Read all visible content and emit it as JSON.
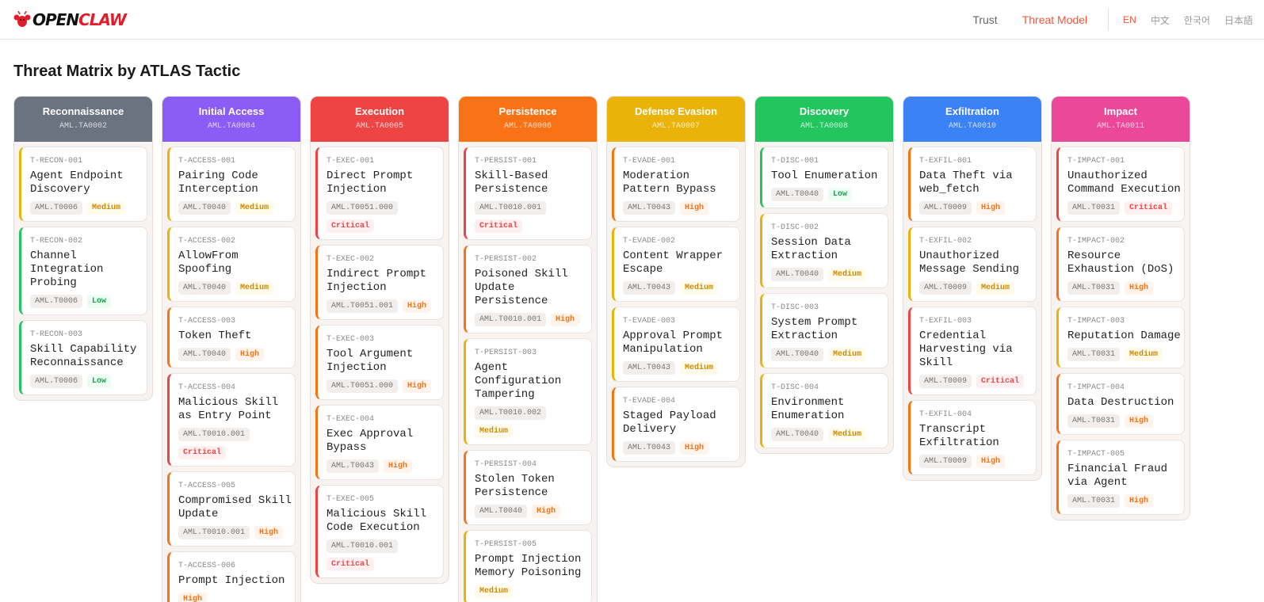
{
  "header": {
    "logo": {
      "part1": "OPEN",
      "part2": "CLAW"
    },
    "nav": [
      {
        "label": "Trust",
        "active": false
      },
      {
        "label": "Threat Model",
        "active": true
      }
    ],
    "languages": [
      {
        "label": "EN",
        "active": true
      },
      {
        "label": "中文",
        "active": false
      },
      {
        "label": "한국어",
        "active": false
      },
      {
        "label": "日本語",
        "active": false
      }
    ]
  },
  "page_title": "Threat Matrix by ATLAS Tactic",
  "severity_colors": {
    "Low": {
      "fg": "#16a34a",
      "bg": "#ecfdf3",
      "border": "#22c55e"
    },
    "Medium": {
      "fg": "#ca8a04",
      "bg": "#fefbea",
      "border": "#eab308"
    },
    "High": {
      "fg": "#f97316",
      "bg": "#fff4ec",
      "border": "#f97316"
    },
    "Critical": {
      "fg": "#ef4444",
      "bg": "#fef0f0",
      "border": "#ef4444"
    }
  },
  "tactics": [
    {
      "name": "Reconnaissance",
      "id": "AML.TA0002",
      "color": "#6b7280",
      "threats": [
        {
          "id": "T-RECON-001",
          "title": "Agent Endpoint Discovery",
          "technique": "AML.T0006",
          "severity": "Medium"
        },
        {
          "id": "T-RECON-002",
          "title": "Channel Integration Probing",
          "technique": "AML.T0006",
          "severity": "Low"
        },
        {
          "id": "T-RECON-003",
          "title": "Skill Capability Reconnaissance",
          "technique": "AML.T0006",
          "severity": "Low"
        }
      ]
    },
    {
      "name": "Initial Access",
      "id": "AML.TA0004",
      "color": "#8b5cf6",
      "threats": [
        {
          "id": "T-ACCESS-001",
          "title": "Pairing Code Interception",
          "technique": "AML.T0040",
          "severity": "Medium"
        },
        {
          "id": "T-ACCESS-002",
          "title": "AllowFrom Spoofing",
          "technique": "AML.T0040",
          "severity": "Medium"
        },
        {
          "id": "T-ACCESS-003",
          "title": "Token Theft",
          "technique": "AML.T0040",
          "severity": "High"
        },
        {
          "id": "T-ACCESS-004",
          "title": "Malicious Skill as Entry Point",
          "technique": "AML.T0010.001",
          "severity": "Critical"
        },
        {
          "id": "T-ACCESS-005",
          "title": "Compromised Skill Update",
          "technique": "AML.T0010.001",
          "severity": "High"
        },
        {
          "id": "T-ACCESS-006",
          "title": "Prompt Injection",
          "technique": "",
          "severity": "High"
        }
      ]
    },
    {
      "name": "Execution",
      "id": "AML.TA0005",
      "color": "#ef4444",
      "threats": [
        {
          "id": "T-EXEC-001",
          "title": "Direct Prompt Injection",
          "technique": "AML.T0051.000",
          "severity": "Critical"
        },
        {
          "id": "T-EXEC-002",
          "title": "Indirect Prompt Injection",
          "technique": "AML.T0051.001",
          "severity": "High"
        },
        {
          "id": "T-EXEC-003",
          "title": "Tool Argument Injection",
          "technique": "AML.T0051.000",
          "severity": "High"
        },
        {
          "id": "T-EXEC-004",
          "title": "Exec Approval Bypass",
          "technique": "AML.T0043",
          "severity": "High"
        },
        {
          "id": "T-EXEC-005",
          "title": "Malicious Skill Code Execution",
          "technique": "AML.T0010.001",
          "severity": "Critical"
        }
      ]
    },
    {
      "name": "Persistence",
      "id": "AML.TA0006",
      "color": "#f97316",
      "threats": [
        {
          "id": "T-PERSIST-001",
          "title": "Skill-Based Persistence",
          "technique": "AML.T0010.001",
          "severity": "Critical"
        },
        {
          "id": "T-PERSIST-002",
          "title": "Poisoned Skill Update Persistence",
          "technique": "AML.T0010.001",
          "severity": "High"
        },
        {
          "id": "T-PERSIST-003",
          "title": "Agent Configuration Tampering",
          "technique": "AML.T0010.002",
          "severity": "Medium"
        },
        {
          "id": "T-PERSIST-004",
          "title": "Stolen Token Persistence",
          "technique": "AML.T0040",
          "severity": "High"
        },
        {
          "id": "T-PERSIST-005",
          "title": "Prompt Injection Memory Poisoning",
          "technique": "",
          "severity": "Medium"
        }
      ]
    },
    {
      "name": "Defense Evasion",
      "id": "AML.TA0007",
      "color": "#eab308",
      "threats": [
        {
          "id": "T-EVADE-001",
          "title": "Moderation Pattern Bypass",
          "technique": "AML.T0043",
          "severity": "High"
        },
        {
          "id": "T-EVADE-002",
          "title": "Content Wrapper Escape",
          "technique": "AML.T0043",
          "severity": "Medium"
        },
        {
          "id": "T-EVADE-003",
          "title": "Approval Prompt Manipulation",
          "technique": "AML.T0043",
          "severity": "Medium"
        },
        {
          "id": "T-EVADE-004",
          "title": "Staged Payload Delivery",
          "technique": "AML.T0043",
          "severity": "High"
        }
      ]
    },
    {
      "name": "Discovery",
      "id": "AML.TA0008",
      "color": "#22c55e",
      "threats": [
        {
          "id": "T-DISC-001",
          "title": "Tool Enumeration",
          "technique": "AML.T0040",
          "severity": "Low"
        },
        {
          "id": "T-DISC-002",
          "title": "Session Data Extraction",
          "technique": "AML.T0040",
          "severity": "Medium"
        },
        {
          "id": "T-DISC-003",
          "title": "System Prompt Extraction",
          "technique": "AML.T0040",
          "severity": "Medium"
        },
        {
          "id": "T-DISC-004",
          "title": "Environment Enumeration",
          "technique": "AML.T0040",
          "severity": "Medium"
        }
      ]
    },
    {
      "name": "Exfiltration",
      "id": "AML.TA0010",
      "color": "#3b82f6",
      "threats": [
        {
          "id": "T-EXFIL-001",
          "title": "Data Theft via web_fetch",
          "technique": "AML.T0009",
          "severity": "High"
        },
        {
          "id": "T-EXFIL-002",
          "title": "Unauthorized Message Sending",
          "technique": "AML.T0009",
          "severity": "Medium"
        },
        {
          "id": "T-EXFIL-003",
          "title": "Credential Harvesting via Skill",
          "technique": "AML.T0009",
          "severity": "Critical"
        },
        {
          "id": "T-EXFIL-004",
          "title": "Transcript Exfiltration",
          "technique": "AML.T0009",
          "severity": "High"
        }
      ]
    },
    {
      "name": "Impact",
      "id": "AML.TA0011",
      "color": "#ec4899",
      "threats": [
        {
          "id": "T-IMPACT-001",
          "title": "Unauthorized Command Execution",
          "technique": "AML.T0031",
          "severity": "Critical"
        },
        {
          "id": "T-IMPACT-002",
          "title": "Resource Exhaustion (DoS)",
          "technique": "AML.T0031",
          "severity": "High"
        },
        {
          "id": "T-IMPACT-003",
          "title": "Reputation Damage",
          "technique": "AML.T0031",
          "severity": "Medium"
        },
        {
          "id": "T-IMPACT-004",
          "title": "Data Destruction",
          "technique": "AML.T0031",
          "severity": "High"
        },
        {
          "id": "T-IMPACT-005",
          "title": "Financial Fraud via Agent",
          "technique": "AML.T0031",
          "severity": "High"
        }
      ]
    }
  ]
}
